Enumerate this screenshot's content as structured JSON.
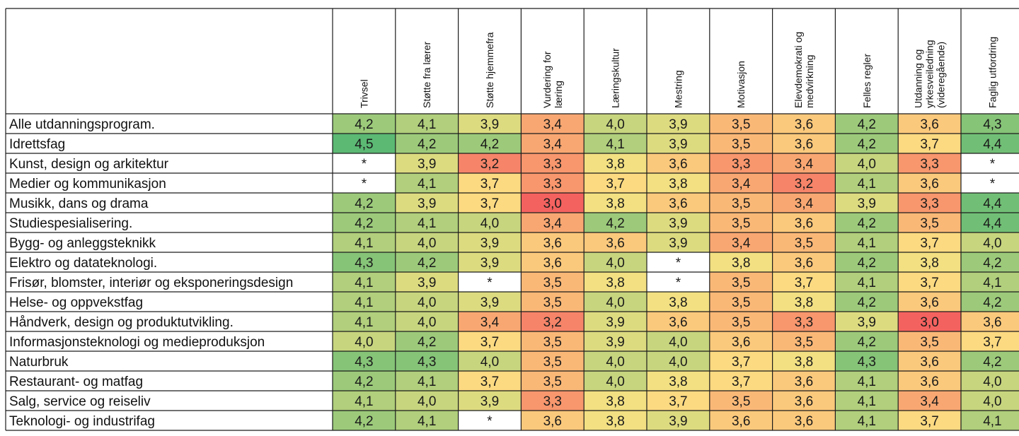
{
  "chart_data": {
    "type": "heatmap",
    "title": "",
    "columns": [
      [
        "Trivsel"
      ],
      [
        "Støtte fra lærer"
      ],
      [
        "Støtte hjemmefra"
      ],
      [
        "Vurdering for",
        "læring"
      ],
      [
        "Læringskultur"
      ],
      [
        "Mestring"
      ],
      [
        "Motivasjon"
      ],
      [
        "Elevdemokrati og",
        "medvirkning"
      ],
      [
        "Felles regler"
      ],
      [
        "Utdanning og",
        "yrkesveiledning",
        "(videregående)"
      ],
      [
        "Faglig utfordring"
      ]
    ],
    "rows": [
      "Alle utdanningsprogram.",
      "Idrettsfag",
      "Kunst, design og arkitektur",
      "Medier og kommunikasjon",
      "Musikk, dans og drama",
      "Studiespesialisering.",
      "Bygg- og anleggsteknikk",
      "Elektro og datateknologi.",
      "Frisør, blomster, interiør og eksponeringsdesign",
      "Helse- og oppvekstfag",
      "Håndverk, design og produktutvikling.",
      "Informasjonsteknologi og medieproduksjon",
      "Naturbruk",
      "Restaurant- og matfag",
      "Salg, service og reiseliv",
      "Teknologi- og industrifag"
    ],
    "values": [
      [
        "4,2",
        "4,1",
        "3,9",
        "3,4",
        "4,0",
        "3,9",
        "3,5",
        "3,6",
        "4,2",
        "3,6",
        "4,3"
      ],
      [
        "4,5",
        "4,2",
        "4,2",
        "3,4",
        "4,1",
        "3,9",
        "3,5",
        "3,6",
        "4,2",
        "3,7",
        "4,4"
      ],
      [
        "*",
        "3,9",
        "3,2",
        "3,3",
        "3,8",
        "3,6",
        "3,3",
        "3,4",
        "4,0",
        "3,3",
        "*"
      ],
      [
        "*",
        "4,1",
        "3,7",
        "3,3",
        "3,7",
        "3,8",
        "3,4",
        "3,2",
        "4,1",
        "3,6",
        "*"
      ],
      [
        "4,2",
        "3,9",
        "3,7",
        "3,0",
        "3,8",
        "3,6",
        "3,5",
        "3,4",
        "3,9",
        "3,3",
        "4,4"
      ],
      [
        "4,2",
        "4,1",
        "4,0",
        "3,4",
        "4,2",
        "3,9",
        "3,5",
        "3,6",
        "4,2",
        "3,5",
        "4,4"
      ],
      [
        "4,1",
        "4,0",
        "3,9",
        "3,6",
        "3,6",
        "3,9",
        "3,4",
        "3,5",
        "4,1",
        "3,7",
        "4,0"
      ],
      [
        "4,3",
        "4,2",
        "3,9",
        "3,6",
        "4,0",
        "*",
        "3,8",
        "3,6",
        "4,2",
        "3,8",
        "4,2"
      ],
      [
        "4,1",
        "3,9",
        "*",
        "3,5",
        "3,8",
        "*",
        "3,5",
        "3,7",
        "4,1",
        "3,7",
        "4,1"
      ],
      [
        "4,1",
        "4,0",
        "3,9",
        "3,5",
        "4,0",
        "3,8",
        "3,5",
        "3,8",
        "4,2",
        "3,6",
        "4,2"
      ],
      [
        "4,1",
        "4,0",
        "3,4",
        "3,2",
        "3,9",
        "3,6",
        "3,5",
        "3,3",
        "3,9",
        "3,0",
        "3,6"
      ],
      [
        "4,0",
        "4,2",
        "3,7",
        "3,5",
        "3,9",
        "4,0",
        "3,6",
        "3,5",
        "4,2",
        "3,5",
        "3,7"
      ],
      [
        "4,3",
        "4,3",
        "4,0",
        "3,5",
        "4,0",
        "4,0",
        "3,7",
        "3,8",
        "4,3",
        "3,6",
        "4,2"
      ],
      [
        "4,2",
        "4,1",
        "3,7",
        "3,5",
        "4,0",
        "3,8",
        "3,7",
        "3,6",
        "4,1",
        "3,6",
        "4,0"
      ],
      [
        "4,1",
        "4,0",
        "3,9",
        "3,3",
        "3,8",
        "3,7",
        "3,5",
        "3,6",
        "4,1",
        "3,4",
        "4,0"
      ],
      [
        "4,2",
        "4,1",
        "*",
        "3,6",
        "3,8",
        "3,9",
        "3,6",
        "3,6",
        "4,1",
        "3,7",
        "4,1"
      ]
    ],
    "color_scale": {
      "low_value": 3.0,
      "low_color": "#f4625f",
      "mid_value": 3.75,
      "mid_color": "#fde383",
      "high_value": 4.5,
      "high_color": "#5bb974",
      "missing_color": "#ffffff"
    },
    "grid": true
  }
}
